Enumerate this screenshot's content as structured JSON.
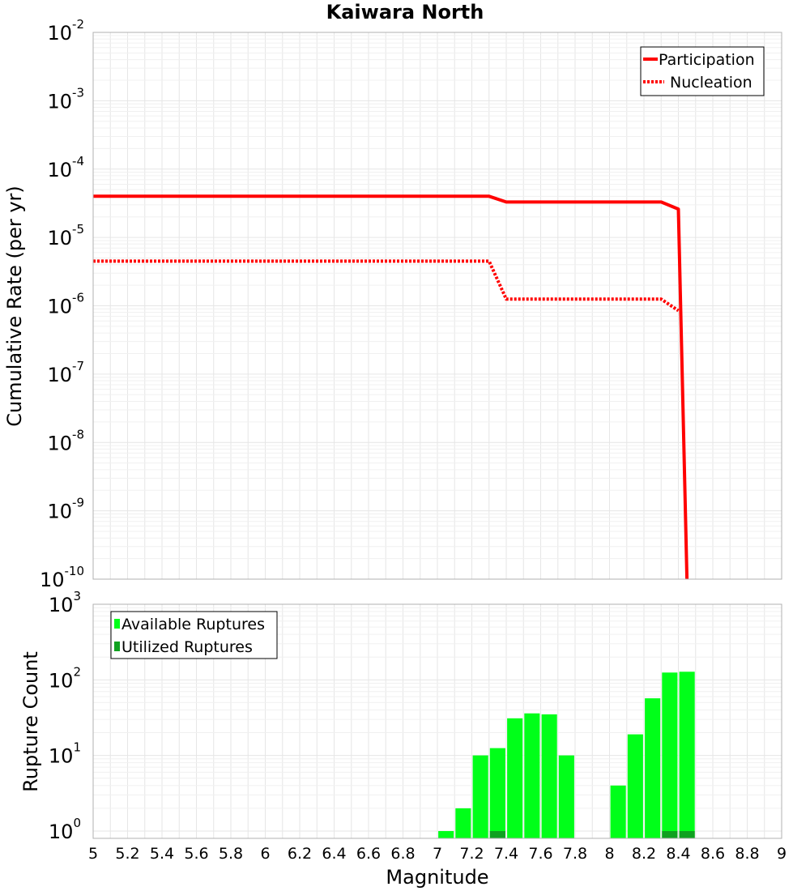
{
  "chart_data": [
    {
      "type": "line",
      "title": "Kaiwara North",
      "ylabel": "Cumulative Rate (per yr)",
      "xlabel": "",
      "xlim": [
        5,
        9
      ],
      "ylim": [
        1e-10,
        0.01
      ],
      "yscale": "log",
      "grid": true,
      "legend_position": "top-right",
      "y_ticks": [
        {
          "base": "10",
          "exp": "-2",
          "value": 0.01
        },
        {
          "base": "10",
          "exp": "-3",
          "value": 0.001
        },
        {
          "base": "10",
          "exp": "-4",
          "value": 0.0001
        },
        {
          "base": "10",
          "exp": "-5",
          "value": 1e-05
        },
        {
          "base": "10",
          "exp": "-6",
          "value": 1e-06
        },
        {
          "base": "10",
          "exp": "-7",
          "value": 1e-07
        },
        {
          "base": "10",
          "exp": "-8",
          "value": 1e-08
        },
        {
          "base": "10",
          "exp": "-9",
          "value": 1e-09
        },
        {
          "base": "10",
          "exp": "-10",
          "value": 1e-10
        }
      ],
      "series": [
        {
          "name": "Participation",
          "color": "#ff0000",
          "style": "solid",
          "x": [
            5.0,
            7.3,
            7.4,
            8.3,
            8.4,
            8.45
          ],
          "y": [
            4e-05,
            4e-05,
            3.3e-05,
            3.3e-05,
            2.6e-05,
            1e-10
          ]
        },
        {
          "name": "Nucleation",
          "color": "#ff0000",
          "style": "dotted",
          "x": [
            5.0,
            7.3,
            7.4,
            8.3,
            8.4
          ],
          "y": [
            4.5e-06,
            4.5e-06,
            1.25e-06,
            1.25e-06,
            8.5e-07
          ]
        }
      ]
    },
    {
      "type": "bar",
      "title": "",
      "ylabel": "Rupture Count",
      "xlabel": "Magnitude",
      "xlim": [
        5,
        9
      ],
      "ylim": [
        0.8,
        1000
      ],
      "yscale": "log",
      "grid": true,
      "legend_position": "top-left",
      "bar_width": 0.09,
      "x_ticks": [
        "5",
        "5.2",
        "5.4",
        "5.6",
        "5.8",
        "6",
        "6.2",
        "6.4",
        "6.6",
        "6.8",
        "7",
        "7.2",
        "7.4",
        "7.6",
        "7.8",
        "8",
        "8.2",
        "8.4",
        "8.6",
        "8.8",
        "9"
      ],
      "y_ticks": [
        {
          "base": "10",
          "exp": "0",
          "value": 1
        },
        {
          "base": "10",
          "exp": "1",
          "value": 10
        },
        {
          "base": "10",
          "exp": "2",
          "value": 100
        },
        {
          "base": "10",
          "exp": "3",
          "value": 1000
        }
      ],
      "series": [
        {
          "name": "Available Ruptures",
          "color": "#00ff19",
          "x": [
            7.05,
            7.15,
            7.25,
            7.35,
            7.45,
            7.55,
            7.65,
            7.75,
            8.05,
            8.15,
            8.25,
            8.35,
            8.45
          ],
          "values": [
            1,
            2,
            10,
            12.5,
            31,
            36,
            35,
            10,
            4,
            19,
            57,
            125,
            128
          ]
        },
        {
          "name": "Utilized Ruptures",
          "color": "#0fa11f",
          "x": [
            7.35,
            8.35,
            8.45
          ],
          "values": [
            1,
            1,
            1
          ]
        }
      ]
    }
  ]
}
